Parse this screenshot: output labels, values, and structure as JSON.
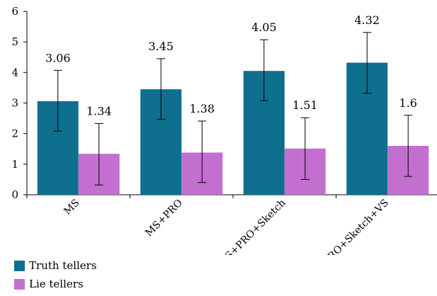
{
  "chart_data": {
    "type": "bar",
    "categories": [
      "MS",
      "MS+PRO",
      "MS+PRO+Sketch",
      "MS+PRO+Sketch+VS"
    ],
    "series": [
      {
        "name": "Truth tellers",
        "color": "#0f6f8f",
        "values": [
          3.06,
          3.45,
          4.05,
          4.32
        ],
        "error_low": [
          2.08,
          2.47,
          3.08,
          3.32
        ],
        "error_high": [
          4.07,
          4.45,
          5.07,
          5.31
        ]
      },
      {
        "name": "Lie tellers",
        "color": "#c36fcf",
        "values": [
          1.34,
          1.38,
          1.51,
          1.6
        ],
        "error_low": [
          0.32,
          0.4,
          0.5,
          0.6
        ],
        "error_high": [
          2.33,
          2.41,
          2.52,
          2.6
        ]
      }
    ],
    "data_labels": [
      [
        "3.06",
        "3.45",
        "4.05",
        "4.32"
      ],
      [
        "1.34",
        "1.38",
        "1.51",
        "1.6"
      ]
    ],
    "yticks": [
      "0",
      "1",
      "2",
      "3",
      "4",
      "5",
      "6"
    ],
    "ylim": [
      0,
      6
    ],
    "title": "",
    "xlabel": "",
    "ylabel": "",
    "grid": false,
    "legend_position": "bottom-left"
  }
}
